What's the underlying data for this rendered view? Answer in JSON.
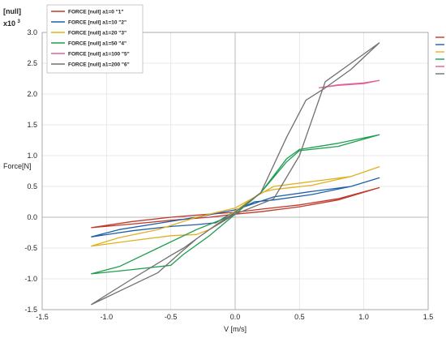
{
  "chart_data": {
    "type": "line",
    "y_unit_label": "[null]",
    "y_multiplier_label": "x10",
    "y_multiplier_exp": "3",
    "xlabel": "V [m/s]",
    "ylabel": "Force[N]",
    "xlim": [
      -1.5,
      1.5
    ],
    "ylim": [
      -1.5,
      3.0
    ],
    "x_ticks": [
      "-1.5",
      "-1.0",
      "-0.5",
      "0.0",
      "0.5",
      "1.0",
      "1.5"
    ],
    "y_ticks": [
      "-1.5",
      "-1.0",
      "-0.5",
      "0.0",
      "0.5",
      "1.0",
      "1.5",
      "2.0",
      "2.5",
      "3.0"
    ],
    "x_tick_values": [
      -1.5,
      -1.0,
      -0.5,
      0.0,
      0.5,
      1.0,
      1.5
    ],
    "y_tick_values": [
      -1.5,
      -1.0,
      -0.5,
      0.0,
      0.5,
      1.0,
      1.5,
      2.0,
      2.5,
      3.0
    ],
    "grid": true,
    "legend_position": "top-left",
    "series": [
      {
        "name": "FORCE [null] a1=0 \"1\"",
        "color": "#c0392b",
        "x": [
          -1.12,
          -0.8,
          -0.5,
          -0.2,
          0.0,
          0.2,
          0.5,
          0.8,
          1.12,
          1.12,
          0.8,
          0.5,
          0.2,
          0.0,
          -0.2,
          -0.5,
          -0.8,
          -1.12
        ],
        "y": [
          -0.17,
          -0.11,
          -0.05,
          0.0,
          0.05,
          0.09,
          0.17,
          0.28,
          0.48,
          0.48,
          0.3,
          0.2,
          0.13,
          0.08,
          0.05,
          0.0,
          -0.07,
          -0.17
        ]
      },
      {
        "name": "FORCE [null] a1=10 \"2\"",
        "color": "#1f5fa8",
        "x": [
          -1.12,
          -0.8,
          -0.5,
          -0.3,
          -0.15,
          0.0,
          0.15,
          0.3,
          0.6,
          0.9,
          1.12,
          1.12,
          0.9,
          0.6,
          0.3,
          0.0,
          -0.3,
          -0.6,
          -0.9,
          -1.12
        ],
        "y": [
          -0.32,
          -0.22,
          -0.15,
          -0.12,
          -0.09,
          0.1,
          0.25,
          0.28,
          0.37,
          0.5,
          0.64,
          0.64,
          0.5,
          0.42,
          0.33,
          0.12,
          0.0,
          -0.1,
          -0.2,
          -0.32
        ]
      },
      {
        "name": "FORCE [null] a1=20 \"3\"",
        "color": "#e0b020",
        "x": [
          -1.12,
          -0.8,
          -0.5,
          -0.3,
          -0.2,
          0.0,
          0.2,
          0.3,
          0.6,
          0.9,
          1.12,
          1.12,
          0.9,
          0.6,
          0.3,
          0.0,
          -0.3,
          -0.6,
          -0.9,
          -1.12
        ],
        "y": [
          -0.47,
          -0.38,
          -0.3,
          -0.28,
          -0.2,
          0.1,
          0.4,
          0.45,
          0.52,
          0.66,
          0.82,
          0.82,
          0.66,
          0.58,
          0.5,
          0.15,
          0.0,
          -0.2,
          -0.33,
          -0.47
        ]
      },
      {
        "name": "FORCE [null] a1=50 \"4\"",
        "color": "#1e9e50",
        "x": [
          -1.12,
          -0.8,
          -0.5,
          -0.4,
          -0.2,
          0.0,
          0.2,
          0.4,
          0.5,
          0.8,
          1.12,
          1.12,
          0.8,
          0.5,
          0.4,
          0.2,
          0.0,
          -0.3,
          -0.6,
          -0.9,
          -1.12
        ],
        "y": [
          -0.92,
          -0.85,
          -0.78,
          -0.6,
          -0.3,
          0.05,
          0.4,
          0.9,
          1.08,
          1.15,
          1.34,
          1.34,
          1.2,
          1.1,
          0.95,
          0.4,
          0.05,
          -0.2,
          -0.5,
          -0.8,
          -0.92
        ]
      },
      {
        "name": "FORCE [null] a1=100 \"5\"",
        "color": "#e0609a",
        "x": [
          0.65,
          0.8,
          1.0,
          1.12,
          1.12,
          1.0,
          0.8,
          0.65
        ],
        "y": [
          2.1,
          2.14,
          2.17,
          2.22,
          2.22,
          2.18,
          2.15,
          2.1
        ]
      },
      {
        "name": "FORCE [null] a1=200 \"6\"",
        "color": "#707070",
        "x": [
          -1.12,
          -0.8,
          -0.5,
          -0.4,
          -0.2,
          0.0,
          0.2,
          0.4,
          0.55,
          0.7,
          0.9,
          1.12,
          1.12,
          0.9,
          0.7,
          0.5,
          0.3,
          0.0,
          -0.2,
          -0.3,
          -0.45,
          -0.6,
          -0.9,
          -1.12
        ],
        "y": [
          -1.42,
          -1.0,
          -0.62,
          -0.5,
          -0.2,
          0.08,
          0.4,
          1.3,
          1.9,
          2.1,
          2.4,
          2.83,
          2.83,
          2.5,
          2.2,
          1.0,
          0.3,
          0.05,
          -0.2,
          -0.35,
          -0.62,
          -0.9,
          -1.2,
          -1.42
        ]
      }
    ]
  }
}
